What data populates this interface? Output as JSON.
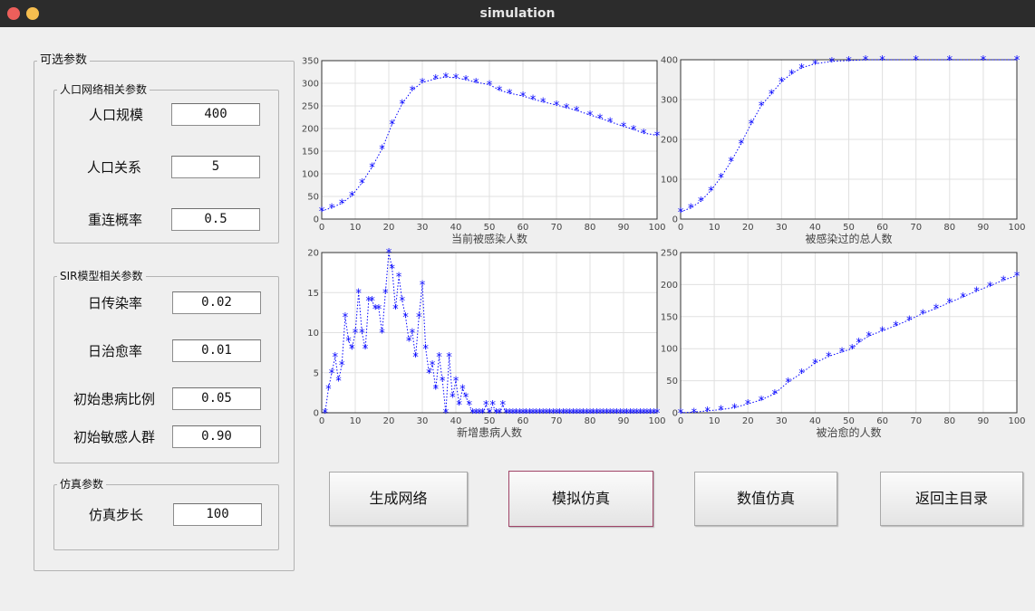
{
  "window": {
    "title": "simulation"
  },
  "panel": {
    "title": "可选参数",
    "network_group": {
      "title": "人口网络相关参数",
      "params": [
        {
          "label": "人口规模",
          "value": "400"
        },
        {
          "label": "人口关系",
          "value": "5"
        },
        {
          "label": "重连概率",
          "value": "0.5"
        }
      ]
    },
    "sir_group": {
      "title": "SIR模型相关参数",
      "params": [
        {
          "label": "日传染率",
          "value": "0.02"
        },
        {
          "label": "日治愈率",
          "value": "0.01"
        },
        {
          "label": "初始患病比例",
          "value": "0.05"
        },
        {
          "label": "初始敏感人群",
          "value": "0.90"
        }
      ]
    },
    "sim_group": {
      "title": "仿真参数",
      "params": [
        {
          "label": "仿真步长",
          "value": "100"
        }
      ]
    }
  },
  "buttons": {
    "generate": "生成网络",
    "simulate": "模拟仿真",
    "numeric": "数值仿真",
    "back": "返回主目录"
  },
  "colors": {
    "series": "#0000ff",
    "grid": "#e0e0e0",
    "axis": "#333333"
  },
  "chart_data": [
    {
      "type": "line",
      "xlabel": "当前被感染人数",
      "xlim": [
        0,
        100
      ],
      "ylim": [
        0,
        350
      ],
      "xticks": [
        0,
        10,
        20,
        30,
        40,
        50,
        60,
        70,
        80,
        90,
        100
      ],
      "yticks": [
        0,
        50,
        100,
        150,
        200,
        250,
        300,
        350
      ],
      "marker": "*",
      "line": "dotted",
      "series": [
        {
          "values": [
            [
              0,
              18
            ],
            [
              3,
              25
            ],
            [
              6,
              35
            ],
            [
              9,
              52
            ],
            [
              12,
              80
            ],
            [
              15,
              115
            ],
            [
              18,
              155
            ],
            [
              21,
              210
            ],
            [
              24,
              255
            ],
            [
              27,
              285
            ],
            [
              30,
              302
            ],
            [
              34,
              310
            ],
            [
              37,
              314
            ],
            [
              40,
              312
            ],
            [
              43,
              308
            ],
            [
              46,
              302
            ],
            [
              50,
              297
            ],
            [
              53,
              285
            ],
            [
              56,
              278
            ],
            [
              60,
              272
            ],
            [
              63,
              265
            ],
            [
              66,
              259
            ],
            [
              70,
              252
            ],
            [
              73,
              246
            ],
            [
              76,
              240
            ],
            [
              80,
              230
            ],
            [
              83,
              223
            ],
            [
              86,
              215
            ],
            [
              90,
              205
            ],
            [
              93,
              198
            ],
            [
              96,
              190
            ],
            [
              100,
              185
            ]
          ]
        }
      ]
    },
    {
      "type": "line",
      "xlabel": "被感染过的总人数",
      "xlim": [
        0,
        100
      ],
      "ylim": [
        0,
        400
      ],
      "xticks": [
        0,
        10,
        20,
        30,
        40,
        50,
        60,
        70,
        80,
        90,
        100
      ],
      "yticks": [
        0,
        100,
        200,
        300,
        400
      ],
      "marker": "*",
      "line": "dotted",
      "series": [
        {
          "values": [
            [
              0,
              18
            ],
            [
              3,
              28
            ],
            [
              6,
              45
            ],
            [
              9,
              72
            ],
            [
              12,
              105
            ],
            [
              15,
              145
            ],
            [
              18,
              190
            ],
            [
              21,
              240
            ],
            [
              24,
              285
            ],
            [
              27,
              315
            ],
            [
              30,
              345
            ],
            [
              33,
              365
            ],
            [
              36,
              380
            ],
            [
              40,
              390
            ],
            [
              45,
              396
            ],
            [
              50,
              398
            ],
            [
              55,
              400
            ],
            [
              60,
              400
            ],
            [
              70,
              400
            ],
            [
              80,
              400
            ],
            [
              90,
              400
            ],
            [
              100,
              400
            ]
          ]
        }
      ]
    },
    {
      "type": "scatter",
      "xlabel": "新增患病人数",
      "xlim": [
        0,
        100
      ],
      "ylim": [
        0,
        20
      ],
      "xticks": [
        0,
        10,
        20,
        30,
        40,
        50,
        60,
        70,
        80,
        90,
        100
      ],
      "yticks": [
        0,
        5,
        10,
        15,
        20
      ],
      "marker": "*",
      "line": "dotted",
      "series": [
        {
          "values": [
            [
              1,
              0
            ],
            [
              2,
              3
            ],
            [
              3,
              5
            ],
            [
              4,
              7
            ],
            [
              5,
              4
            ],
            [
              6,
              6
            ],
            [
              7,
              12
            ],
            [
              8,
              9
            ],
            [
              9,
              8
            ],
            [
              10,
              10
            ],
            [
              11,
              15
            ],
            [
              12,
              10
            ],
            [
              13,
              8
            ],
            [
              14,
              14
            ],
            [
              15,
              14
            ],
            [
              16,
              13
            ],
            [
              17,
              13
            ],
            [
              18,
              10
            ],
            [
              19,
              15
            ],
            [
              20,
              20
            ],
            [
              21,
              18
            ],
            [
              22,
              13
            ],
            [
              23,
              17
            ],
            [
              24,
              14
            ],
            [
              25,
              12
            ],
            [
              26,
              9
            ],
            [
              27,
              10
            ],
            [
              28,
              7
            ],
            [
              29,
              12
            ],
            [
              30,
              16
            ],
            [
              31,
              8
            ],
            [
              32,
              5
            ],
            [
              33,
              6
            ],
            [
              34,
              3
            ],
            [
              35,
              7
            ],
            [
              36,
              4
            ],
            [
              37,
              0
            ],
            [
              38,
              7
            ],
            [
              39,
              2
            ],
            [
              40,
              4
            ],
            [
              41,
              1
            ],
            [
              42,
              3
            ],
            [
              43,
              2
            ],
            [
              44,
              1
            ],
            [
              45,
              0
            ],
            [
              46,
              0
            ],
            [
              47,
              0
            ],
            [
              48,
              0
            ],
            [
              49,
              1
            ],
            [
              50,
              0
            ],
            [
              51,
              1
            ],
            [
              52,
              0
            ],
            [
              53,
              0
            ],
            [
              54,
              1
            ],
            [
              55,
              0
            ],
            [
              56,
              0
            ],
            [
              57,
              0
            ],
            [
              58,
              0
            ],
            [
              59,
              0
            ],
            [
              60,
              0
            ],
            [
              61,
              0
            ],
            [
              62,
              0
            ],
            [
              63,
              0
            ],
            [
              64,
              0
            ],
            [
              65,
              0
            ],
            [
              66,
              0
            ],
            [
              67,
              0
            ],
            [
              68,
              0
            ],
            [
              69,
              0
            ],
            [
              70,
              0
            ],
            [
              71,
              0
            ],
            [
              72,
              0
            ],
            [
              73,
              0
            ],
            [
              74,
              0
            ],
            [
              75,
              0
            ],
            [
              76,
              0
            ],
            [
              77,
              0
            ],
            [
              78,
              0
            ],
            [
              79,
              0
            ],
            [
              80,
              0
            ],
            [
              81,
              0
            ],
            [
              82,
              0
            ],
            [
              83,
              0
            ],
            [
              84,
              0
            ],
            [
              85,
              0
            ],
            [
              86,
              0
            ],
            [
              87,
              0
            ],
            [
              88,
              0
            ],
            [
              89,
              0
            ],
            [
              90,
              0
            ],
            [
              91,
              0
            ],
            [
              92,
              0
            ],
            [
              93,
              0
            ],
            [
              94,
              0
            ],
            [
              95,
              0
            ],
            [
              96,
              0
            ],
            [
              97,
              0
            ],
            [
              98,
              0
            ],
            [
              99,
              0
            ],
            [
              100,
              0
            ]
          ]
        }
      ]
    },
    {
      "type": "line",
      "xlabel": "被治愈的人数",
      "xlim": [
        0,
        100
      ],
      "ylim": [
        0,
        250
      ],
      "xticks": [
        0,
        10,
        20,
        30,
        40,
        50,
        60,
        70,
        80,
        90,
        100
      ],
      "yticks": [
        0,
        50,
        100,
        150,
        200,
        250
      ],
      "marker": "*",
      "line": "dotted",
      "series": [
        {
          "values": [
            [
              0,
              0
            ],
            [
              4,
              1
            ],
            [
              8,
              3
            ],
            [
              12,
              5
            ],
            [
              16,
              8
            ],
            [
              20,
              14
            ],
            [
              24,
              20
            ],
            [
              28,
              30
            ],
            [
              32,
              48
            ],
            [
              36,
              62
            ],
            [
              40,
              78
            ],
            [
              44,
              88
            ],
            [
              48,
              95
            ],
            [
              51,
              100
            ],
            [
              53,
              110
            ],
            [
              56,
              120
            ],
            [
              60,
              128
            ],
            [
              64,
              136
            ],
            [
              68,
              145
            ],
            [
              72,
              155
            ],
            [
              76,
              163
            ],
            [
              80,
              172
            ],
            [
              84,
              181
            ],
            [
              88,
              190
            ],
            [
              92,
              198
            ],
            [
              96,
              207
            ],
            [
              100,
              214
            ]
          ]
        }
      ]
    }
  ]
}
